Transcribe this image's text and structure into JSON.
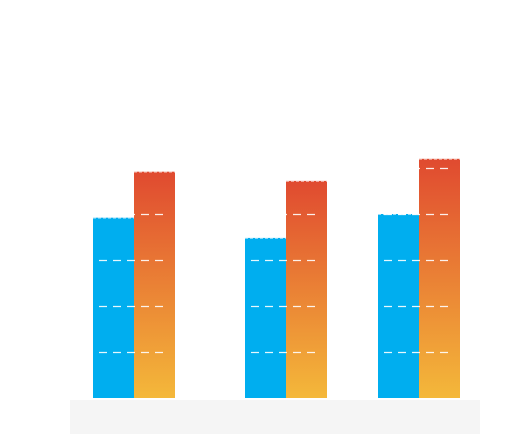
{
  "chart_data": {
    "type": "bar",
    "categories": [
      "",
      "",
      ""
    ],
    "series": [
      {
        "values": [
          49,
          43.5,
          50
        ]
      },
      {
        "values": [
          61.5,
          59,
          65
        ]
      }
    ],
    "ylim": [
      0,
      100
    ],
    "grid": true,
    "legend": "none"
  },
  "colors": {
    "background": "#ffffff",
    "series_1": "#00aeef",
    "series_2_top": "#e04a30",
    "series_2_bottom": "#f4b83a",
    "grid": "#ffffff",
    "floor": "#f5f5f5"
  }
}
